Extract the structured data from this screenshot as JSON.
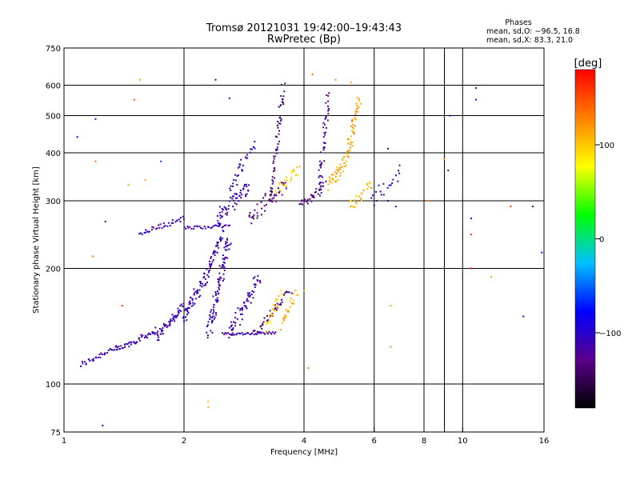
{
  "chart_data": {
    "type": "scatter",
    "title": "Tromsø 20121031 19:42:00–19:43:43",
    "subtitle": "RwPretec (Bp)",
    "xlabel": "Frequency [MHz]",
    "ylabel": "Stationary phase Virtual Height [km]",
    "x_scale": "log",
    "y_scale": "log",
    "xlim": [
      1,
      16
    ],
    "ylim": [
      75,
      750
    ],
    "x_ticks": [
      1,
      2,
      4,
      6,
      8,
      10,
      16
    ],
    "x_tick_labels": [
      "1",
      "2",
      "4",
      "6",
      "8",
      "10",
      "16"
    ],
    "x_gridlines": [
      2,
      4,
      6,
      8,
      9,
      10
    ],
    "y_ticks": [
      75,
      100,
      200,
      300,
      400,
      500,
      600,
      750
    ],
    "y_tick_labels": [
      "75",
      "100",
      "200",
      "300",
      "400",
      "500",
      "600",
      "750"
    ],
    "y_gridlines": [
      100,
      200,
      300,
      400,
      500,
      600
    ],
    "grid": true,
    "legend": {
      "title": "Phases",
      "lines": [
        "mean, sd,O: −96.5, 16.8",
        "mean, sd,X: 83.3, 21.0"
      ],
      "placement": "top-right"
    },
    "colorbar": {
      "label": "[deg]",
      "ticks": [
        100,
        0,
        -100
      ],
      "tick_labels": [
        "100",
        "0",
        "−100"
      ],
      "range": [
        -180,
        180
      ],
      "colors": [
        "#000000",
        "#5a008c",
        "#0000ff",
        "#00c0ff",
        "#00ff00",
        "#ffff00",
        "#ff8000",
        "#ff0000"
      ]
    },
    "traces": [
      {
        "f": [
          1.1,
          1.35
        ],
        "h": [
          112,
          125
        ],
        "phase": -110,
        "n": 30,
        "spread": 0.012
      },
      {
        "f": [
          1.35,
          1.7
        ],
        "h": [
          122,
          138
        ],
        "phase": -112,
        "n": 45,
        "spread": 0.012
      },
      {
        "f": [
          1.7,
          2.0
        ],
        "h": [
          132,
          160
        ],
        "phase": -110,
        "n": 55,
        "spread": 0.02
      },
      {
        "f": [
          2.0,
          2.3
        ],
        "h": [
          150,
          195
        ],
        "phase": -108,
        "n": 60,
        "spread": 0.025
      },
      {
        "f": [
          2.3,
          2.6
        ],
        "h": [
          135,
          240
        ],
        "phase": -110,
        "n": 90,
        "spread": 0.03
      },
      {
        "f": [
          2.6,
          3.1
        ],
        "h": [
          135,
          190
        ],
        "phase": -112,
        "n": 60,
        "spread": 0.03
      },
      {
        "f": [
          2.3,
          2.5
        ],
        "h": [
          200,
          245
        ],
        "phase": -108,
        "n": 35,
        "spread": 0.02
      },
      {
        "f": [
          2.5,
          3.4
        ],
        "h": [
          135,
          136
        ],
        "phase": -115,
        "n": 40,
        "spread": 0.005
      },
      {
        "f": [
          3.0,
          3.7
        ],
        "h": [
          135,
          175
        ],
        "phase": -135,
        "n": 40,
        "spread": 0.015
      },
      {
        "f": [
          3.2,
          3.5
        ],
        "h": [
          140,
          170
        ],
        "phase": 95,
        "n": 25,
        "spread": 0.02
      },
      {
        "f": [
          3.5,
          3.85
        ],
        "h": [
          142,
          175
        ],
        "phase": 110,
        "n": 25,
        "spread": 0.02
      },
      {
        "f": [
          1.55,
          2.0
        ],
        "h": [
          247,
          270
        ],
        "phase": -112,
        "n": 35,
        "spread": 0.01
      },
      {
        "f": [
          2.0,
          2.6
        ],
        "h": [
          255,
          258
        ],
        "phase": -110,
        "n": 30,
        "spread": 0.006
      },
      {
        "f": [
          2.4,
          2.9
        ],
        "h": [
          265,
          330
        ],
        "phase": -108,
        "n": 60,
        "spread": 0.03
      },
      {
        "f": [
          2.6,
          3.0
        ],
        "h": [
          320,
          420
        ],
        "phase": -105,
        "n": 30,
        "spread": 0.03
      },
      {
        "f": [
          2.9,
          3.6
        ],
        "h": [
          270,
          330
        ],
        "phase": -130,
        "n": 45,
        "spread": 0.03
      },
      {
        "f": [
          3.3,
          3.55
        ],
        "h": [
          300,
          600
        ],
        "phase": -140,
        "n": 55,
        "spread": 0.02
      },
      {
        "f": [
          3.4,
          3.9
        ],
        "h": [
          320,
          360
        ],
        "phase": 95,
        "n": 25,
        "spread": 0.02
      },
      {
        "f": [
          3.9,
          4.5
        ],
        "h": [
          290,
          330
        ],
        "phase": -130,
        "n": 30,
        "spread": 0.02
      },
      {
        "f": [
          4.35,
          4.6
        ],
        "h": [
          310,
          560
        ],
        "phase": -120,
        "n": 50,
        "spread": 0.025
      },
      {
        "f": [
          4.6,
          5.1
        ],
        "h": [
          330,
          380
        ],
        "phase": 110,
        "n": 35,
        "spread": 0.025
      },
      {
        "f": [
          5.1,
          5.5
        ],
        "h": [
          380,
          560
        ],
        "phase": 118,
        "n": 45,
        "spread": 0.025
      },
      {
        "f": [
          5.2,
          5.9
        ],
        "h": [
          290,
          330
        ],
        "phase": 105,
        "n": 25,
        "spread": 0.02
      },
      {
        "f": [
          5.9,
          7.0
        ],
        "h": [
          300,
          360
        ],
        "phase": -110,
        "n": 20,
        "spread": 0.03
      }
    ],
    "scattered_points": [
      [
        1.08,
        440,
        -110
      ],
      [
        1.2,
        490,
        -100
      ],
      [
        1.18,
        215,
        130
      ],
      [
        1.45,
        330,
        110
      ],
      [
        1.5,
        550,
        150
      ],
      [
        1.6,
        340,
        120
      ],
      [
        1.4,
        160,
        160
      ],
      [
        1.27,
        265,
        -110
      ],
      [
        1.25,
        78,
        -115
      ],
      [
        1.55,
        620,
        115
      ],
      [
        1.75,
        380,
        -60
      ],
      [
        1.2,
        380,
        140
      ],
      [
        2.3,
        90,
        100
      ],
      [
        2.3,
        87,
        110
      ],
      [
        2.4,
        620,
        -105
      ],
      [
        2.6,
        555,
        -110
      ],
      [
        4.2,
        640,
        140
      ],
      [
        4.8,
        620,
        120
      ],
      [
        5.25,
        610,
        110
      ],
      [
        6.5,
        410,
        -150
      ],
      [
        6.5,
        300,
        -120
      ],
      [
        6.8,
        290,
        -100
      ],
      [
        6.6,
        160,
        110
      ],
      [
        6.6,
        125,
        120
      ],
      [
        9.2,
        360,
        -110
      ],
      [
        9.3,
        500,
        -110
      ],
      [
        10.5,
        200,
        170
      ],
      [
        10.8,
        590,
        -115
      ],
      [
        10.8,
        550,
        -100
      ],
      [
        11.8,
        190,
        110
      ],
      [
        13.2,
        290,
        160
      ],
      [
        14.2,
        150,
        -100
      ],
      [
        15.0,
        290,
        -110
      ],
      [
        15.8,
        220,
        -110
      ],
      [
        9.0,
        385,
        120
      ],
      [
        8.2,
        300,
        130
      ],
      [
        10.5,
        270,
        -90
      ],
      [
        10.5,
        245,
        170
      ],
      [
        4.1,
        110,
        130
      ],
      [
        4.0,
        175,
        100
      ]
    ]
  }
}
